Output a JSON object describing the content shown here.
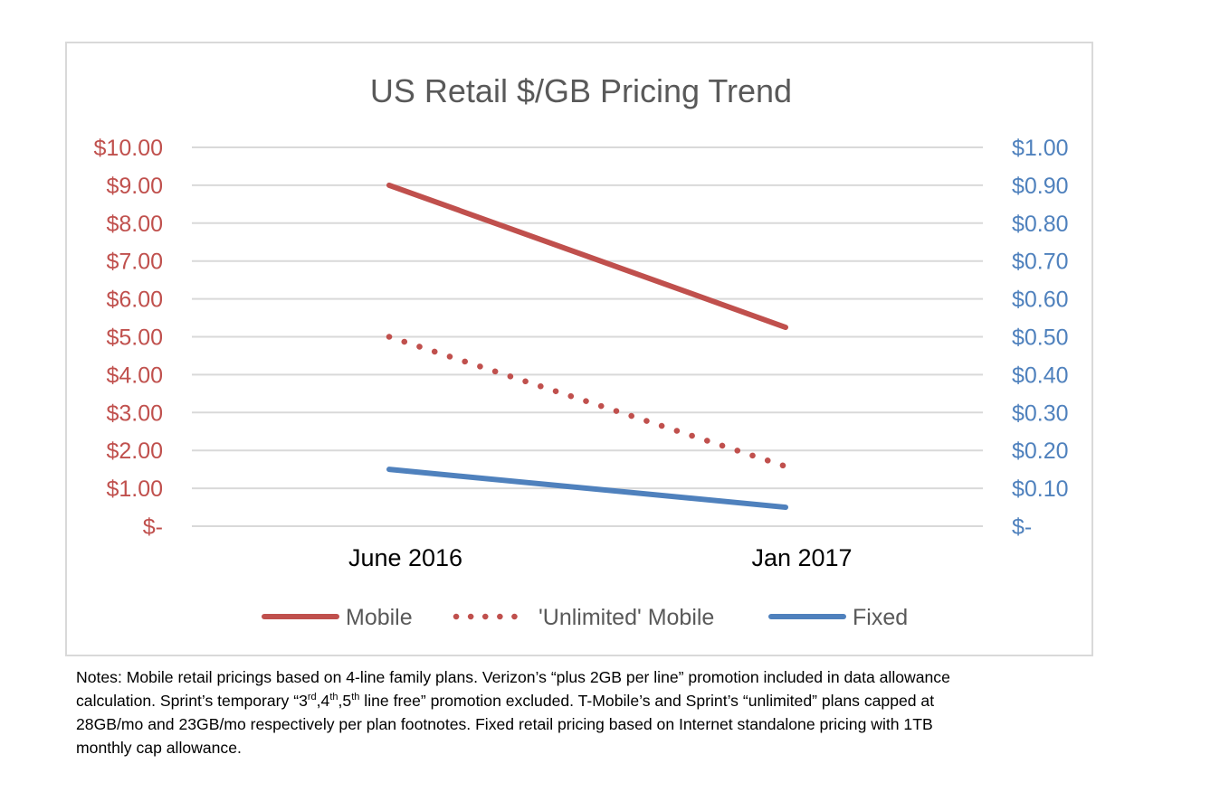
{
  "chart_data": {
    "type": "line",
    "title": "US Retail $/GB Pricing Trend",
    "categories": [
      "June 2016",
      "Jan 2017"
    ],
    "y_left": {
      "range": [
        0,
        10
      ],
      "ticks": [
        "$-",
        "$1.00",
        "$2.00",
        "$3.00",
        "$4.00",
        "$5.00",
        "$6.00",
        "$7.00",
        "$8.00",
        "$9.00",
        "$10.00"
      ],
      "color": "#c0504d"
    },
    "y_right": {
      "range": [
        0,
        1
      ],
      "ticks": [
        "$-",
        "$0.10",
        "$0.20",
        "$0.30",
        "$0.40",
        "$0.50",
        "$0.60",
        "$0.70",
        "$0.80",
        "$0.90",
        "$1.00"
      ],
      "color": "#4f81bd"
    },
    "grid": true,
    "legend_position": "bottom",
    "series": [
      {
        "name": "Mobile",
        "axis": "left",
        "style": "solid",
        "color": "#c0504d",
        "values": [
          9.0,
          5.25
        ]
      },
      {
        "name": "'Unlimited' Mobile",
        "axis": "left",
        "style": "dotted",
        "color": "#c0504d",
        "values": [
          5.0,
          1.58
        ]
      },
      {
        "name": "Fixed",
        "axis": "right",
        "style": "solid",
        "color": "#4f81bd",
        "values": [
          0.15,
          0.05
        ]
      }
    ]
  },
  "notes": {
    "line1": "Notes:  Mobile retail pricings based on 4-line family plans.  Verizon’s “plus 2GB per line” promotion included in data allowance",
    "line2_a": "calculation.  Sprint’s temporary “3",
    "line2_sup1": "rd",
    "line2_b": ",4",
    "line2_sup2": "th",
    "line2_c": ",5",
    "line2_sup3": "th",
    "line2_d": " line free” promotion excluded.  T-Mobile’s and Sprint’s “unlimited” plans capped at",
    "line3": "28GB/mo and 23GB/mo respectively per plan footnotes.  Fixed retail pricing based on Internet standalone pricing with 1TB",
    "line4": "monthly cap allowance."
  }
}
